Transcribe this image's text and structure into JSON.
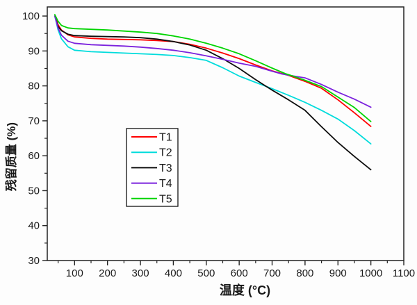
{
  "chart_data": {
    "type": "line",
    "title": "",
    "xlabel": "温度 (°C)",
    "ylabel": "残留质量 (%)",
    "xlim": [
      17,
      1100
    ],
    "ylim": [
      30,
      102.6
    ],
    "x_major_ticks": [
      100,
      200,
      300,
      400,
      500,
      600,
      700,
      800,
      900,
      1000,
      1100
    ],
    "x_minor_ticks": [
      50,
      150,
      250,
      350,
      450,
      550,
      650,
      750,
      850,
      950,
      1050
    ],
    "y_major_ticks": [
      30,
      40,
      50,
      60,
      70,
      80,
      90,
      100
    ],
    "y_minor_ticks": [
      35,
      45,
      55,
      65,
      75,
      85,
      95
    ],
    "grid": false,
    "legend_position": "inside-center-left",
    "series": [
      {
        "name": "T1",
        "color": "#ff0000",
        "points": [
          [
            40,
            100
          ],
          [
            50,
            97.5
          ],
          [
            60,
            96
          ],
          [
            80,
            94.6
          ],
          [
            100,
            94
          ],
          [
            150,
            93.6
          ],
          [
            200,
            93.4
          ],
          [
            250,
            93.3
          ],
          [
            300,
            93.2
          ],
          [
            350,
            93.0
          ],
          [
            400,
            92.7
          ],
          [
            450,
            91.9
          ],
          [
            500,
            90.8
          ],
          [
            550,
            89.4
          ],
          [
            600,
            87.8
          ],
          [
            650,
            86.0
          ],
          [
            700,
            84.3
          ],
          [
            750,
            83.0
          ],
          [
            800,
            81.3
          ],
          [
            850,
            79.3
          ],
          [
            900,
            76.0
          ],
          [
            950,
            72.3
          ],
          [
            1000,
            68.4
          ]
        ]
      },
      {
        "name": "T2",
        "color": "#00dcdc",
        "points": [
          [
            40,
            100
          ],
          [
            50,
            96
          ],
          [
            60,
            93.5
          ],
          [
            80,
            91.2
          ],
          [
            100,
            90.2
          ],
          [
            150,
            89.8
          ],
          [
            200,
            89.6
          ],
          [
            250,
            89.4
          ],
          [
            300,
            89.2
          ],
          [
            350,
            89.0
          ],
          [
            400,
            88.7
          ],
          [
            450,
            88.1
          ],
          [
            500,
            87.3
          ],
          [
            550,
            85.2
          ],
          [
            600,
            82.8
          ],
          [
            650,
            81.0
          ],
          [
            700,
            79.2
          ],
          [
            750,
            77.3
          ],
          [
            800,
            75.3
          ],
          [
            850,
            73.0
          ],
          [
            900,
            70.5
          ],
          [
            950,
            67.2
          ],
          [
            1000,
            63.4
          ]
        ]
      },
      {
        "name": "T3",
        "color": "#0d0d0d",
        "points": [
          [
            40,
            100
          ],
          [
            50,
            97
          ],
          [
            60,
            95.8
          ],
          [
            80,
            94.8
          ],
          [
            100,
            94.4
          ],
          [
            150,
            94.2
          ],
          [
            200,
            94.1
          ],
          [
            250,
            94.0
          ],
          [
            300,
            93.8
          ],
          [
            350,
            93.4
          ],
          [
            400,
            92.7
          ],
          [
            450,
            91.7
          ],
          [
            500,
            90.2
          ],
          [
            550,
            87.8
          ],
          [
            600,
            85.0
          ],
          [
            650,
            81.8
          ],
          [
            700,
            78.8
          ],
          [
            750,
            76.0
          ],
          [
            800,
            73.0
          ],
          [
            850,
            68.3
          ],
          [
            900,
            63.8
          ],
          [
            950,
            59.8
          ],
          [
            1000,
            56.0
          ]
        ]
      },
      {
        "name": "T4",
        "color": "#7b22dd",
        "points": [
          [
            40,
            100
          ],
          [
            50,
            96.5
          ],
          [
            60,
            94.5
          ],
          [
            80,
            92.8
          ],
          [
            100,
            92.2
          ],
          [
            150,
            91.8
          ],
          [
            200,
            91.6
          ],
          [
            250,
            91.4
          ],
          [
            300,
            91.1
          ],
          [
            350,
            90.7
          ],
          [
            400,
            90.2
          ],
          [
            450,
            89.5
          ],
          [
            500,
            88.6
          ],
          [
            550,
            87.6
          ],
          [
            600,
            86.5
          ],
          [
            650,
            85.6
          ],
          [
            700,
            84.2
          ],
          [
            730,
            83.4
          ],
          [
            760,
            82.9
          ],
          [
            800,
            82.3
          ],
          [
            850,
            80.4
          ],
          [
            900,
            78.2
          ],
          [
            950,
            76.2
          ],
          [
            1000,
            73.9
          ]
        ]
      },
      {
        "name": "T5",
        "color": "#00d400",
        "points": [
          [
            40,
            100.4
          ],
          [
            50,
            98.5
          ],
          [
            60,
            97.3
          ],
          [
            80,
            96.6
          ],
          [
            100,
            96.4
          ],
          [
            150,
            96.2
          ],
          [
            200,
            96.0
          ],
          [
            250,
            95.7
          ],
          [
            300,
            95.4
          ],
          [
            350,
            95.0
          ],
          [
            400,
            94.3
          ],
          [
            450,
            93.4
          ],
          [
            500,
            92.2
          ],
          [
            550,
            90.8
          ],
          [
            600,
            89.2
          ],
          [
            650,
            87.2
          ],
          [
            700,
            85.1
          ],
          [
            740,
            83.5
          ],
          [
            760,
            82.9
          ],
          [
            800,
            81.6
          ],
          [
            850,
            79.8
          ],
          [
            900,
            76.8
          ],
          [
            950,
            73.8
          ],
          [
            1000,
            69.8
          ]
        ]
      }
    ]
  },
  "legend": {
    "items": [
      {
        "label": "T1",
        "color": "#ff0000"
      },
      {
        "label": "T2",
        "color": "#00dcdc"
      },
      {
        "label": "T3",
        "color": "#0d0d0d"
      },
      {
        "label": "T4",
        "color": "#7b22dd"
      },
      {
        "label": "T5",
        "color": "#00d400"
      }
    ]
  },
  "style": {
    "axis_color": "#222222",
    "tick_label_color": "#1a1a1a"
  }
}
